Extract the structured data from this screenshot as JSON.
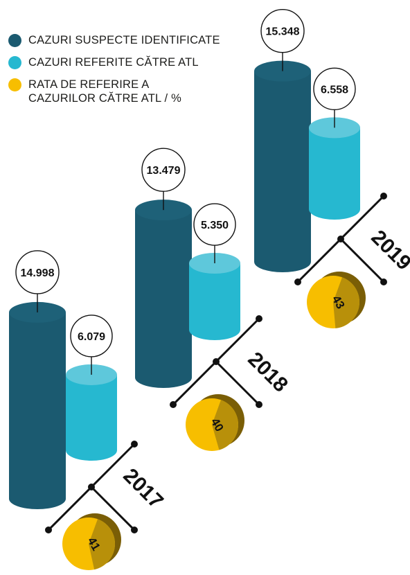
{
  "colors": {
    "suspect": "#1b5a70",
    "suspect_top": "#1e6178",
    "referred": "#26b8d0",
    "referred_top": "#5ec8db",
    "rate": "#f7be00",
    "rate_dark": "#b8900a",
    "rate_side": "#7a5e06",
    "ink": "#111111"
  },
  "legend": [
    {
      "key": "suspect",
      "line1": "CAZURI SUSPECTE IDENTIFICATE",
      "line2": ""
    },
    {
      "key": "referred",
      "line1": "CAZURI REFERITE CĂTRE ATL",
      "line2": ""
    },
    {
      "key": "rate",
      "line1": "RATA DE REFERIRE A",
      "line2": "CAZURILOR CĂTRE ATL / %"
    }
  ],
  "chart_data": {
    "type": "bar",
    "categories": [
      "2017",
      "2018",
      "2019"
    ],
    "series": [
      {
        "name": "CAZURI SUSPECTE IDENTIFICATE",
        "values": [
          14998,
          13479,
          15348
        ],
        "labels": [
          "14.998",
          "13.479",
          "15.348"
        ]
      },
      {
        "name": "CAZURI REFERITE CĂTRE ATL",
        "values": [
          6079,
          5350,
          6558
        ],
        "labels": [
          "6.079",
          "5.350",
          "6.558"
        ]
      },
      {
        "name": "RATA DE REFERIRE A CAZURILOR CĂTRE ATL / %",
        "values": [
          41,
          40,
          43
        ],
        "labels": [
          "41",
          "40",
          "43"
        ]
      }
    ]
  }
}
